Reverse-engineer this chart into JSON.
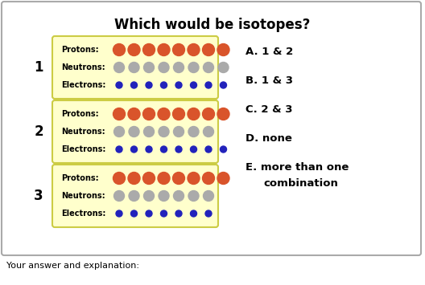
{
  "title": "Which would be isotopes?",
  "boxes": [
    {
      "label": "1",
      "protons": 8,
      "neutrons": 8,
      "electrons": 8
    },
    {
      "label": "2",
      "protons": 8,
      "neutrons": 7,
      "electrons": 8
    },
    {
      "label": "3",
      "protons": 8,
      "neutrons": 7,
      "electrons": 7
    }
  ],
  "choices_line1": [
    "A. 1 & 2",
    "B. 1 & 3",
    "C. 2 & 3",
    "D. none",
    "E. more than one"
  ],
  "choices_line2": "    combination",
  "footer": "Your answer and explanation:",
  "box_bg": "#ffffcc",
  "box_border": "#cccc44",
  "outer_border": "#aaaaaa",
  "proton_color": "#d9542b",
  "neutron_color": "#aaaaaa",
  "electron_color": "#2222bb",
  "title_fontsize": 12,
  "label_fontsize": 12,
  "row_fontsize": 7,
  "choice_fontsize": 9.5,
  "footer_fontsize": 8
}
